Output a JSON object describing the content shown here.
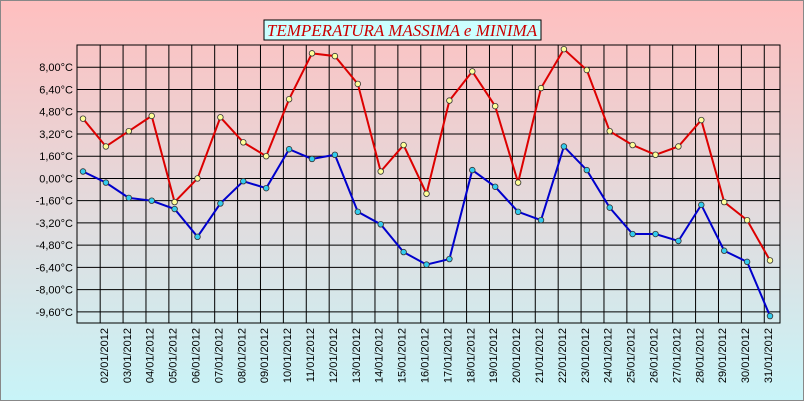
{
  "chart_data": {
    "type": "line",
    "title": "TEMPERATURA MASSIMA e MINIMA",
    "categories": [
      null,
      "02/01/2012",
      "03/01/2012",
      "04/01/2012",
      "05/01/2012",
      "06/01/2012",
      "07/01/2012",
      "08/01/2012",
      "09/01/2012",
      "10/01/2012",
      "11/01/2012",
      "12/01/2012",
      "13/01/2012",
      "14/01/2012",
      "15/01/2012",
      "16/01/2012",
      "17/01/2012",
      "18/01/2012",
      "19/01/2012",
      "20/01/2012",
      "21/01/2012",
      "22/01/2012",
      "23/01/2012",
      "24/01/2012",
      "25/01/2012",
      "26/01/2012",
      "27/01/2012",
      "28/01/2012",
      "29/01/2012",
      "30/01/2012",
      "31/01/2012"
    ],
    "series": [
      {
        "color": "#dd0000",
        "marker_color": "#ffff99",
        "values": [
          4.3,
          2.3,
          3.4,
          4.5,
          -1.7,
          0.0,
          4.4,
          2.6,
          1.6,
          5.7,
          9.0,
          8.8,
          6.8,
          0.5,
          2.4,
          -1.1,
          5.6,
          7.7,
          5.2,
          -0.3,
          6.5,
          9.3,
          7.8,
          3.4,
          2.4,
          1.7,
          2.3,
          4.2,
          -1.7,
          -3.0,
          -5.9
        ]
      },
      {
        "color": "#0000cc",
        "marker_color": "#33ccee",
        "values": [
          0.5,
          -0.3,
          -1.4,
          -1.6,
          -2.2,
          -4.2,
          -1.8,
          -0.2,
          -0.7,
          2.1,
          1.4,
          1.7,
          -2.4,
          -3.3,
          -5.3,
          -6.2,
          -5.8,
          0.6,
          -0.6,
          -2.4,
          -3.0,
          2.3,
          0.6,
          -2.1,
          -4.0,
          -4.0,
          -4.5,
          -1.9,
          -5.2,
          -6.0,
          -9.9
        ]
      }
    ],
    "ylim": [
      -10.4,
      9.6
    ],
    "yticks": [
      {
        "value": 8,
        "label": "8,00°C"
      },
      {
        "value": 6.4,
        "label": "6,40°C"
      },
      {
        "value": 4.8,
        "label": "4,80°C"
      },
      {
        "value": 3.2,
        "label": "3,20°C"
      },
      {
        "value": 1.6,
        "label": "1,60°C"
      },
      {
        "value": 0,
        "label": "0,00°C"
      },
      {
        "value": -1.6,
        "label": "-1,60°C"
      },
      {
        "value": -3.2,
        "label": "-3,20°C"
      },
      {
        "value": -4.8,
        "label": "-4,80°C"
      },
      {
        "value": -6.4,
        "label": "-6,40°C"
      },
      {
        "value": -8,
        "label": "-8,00°C"
      },
      {
        "value": -9.6,
        "label": "-9,60°C"
      }
    ],
    "grid": true
  }
}
